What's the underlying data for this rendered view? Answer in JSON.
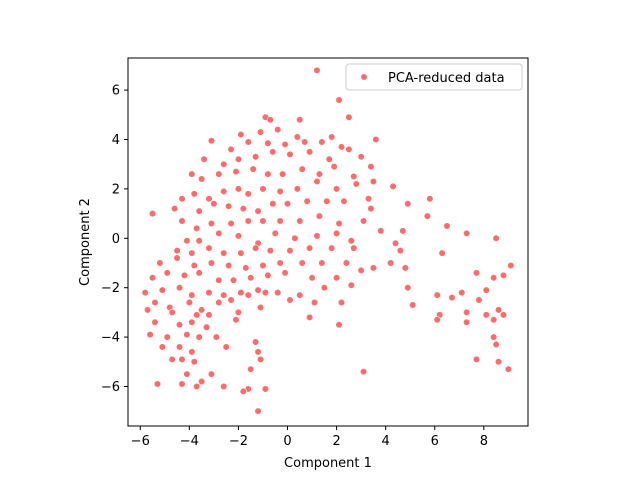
{
  "chart_data": {
    "type": "scatter",
    "title": "",
    "xlabel": "Component 1",
    "ylabel": "Component 2",
    "xlim": [
      -6.5,
      9.8
    ],
    "ylim": [
      -7.6,
      7.3
    ],
    "xticks": [
      -6,
      -4,
      -2,
      0,
      2,
      4,
      6,
      8
    ],
    "yticks": [
      -6,
      -4,
      -2,
      0,
      2,
      4,
      6
    ],
    "grid": false,
    "legend_position": "upper right",
    "series": [
      {
        "name": "PCA-reduced data",
        "color": "#ff5b5b",
        "points": [
          [
            1.2,
            6.8
          ],
          [
            2.1,
            5.6
          ],
          [
            2.5,
            4.9
          ],
          [
            -0.9,
            4.9
          ],
          [
            -0.7,
            4.8
          ],
          [
            0.5,
            4.8
          ],
          [
            -1.9,
            4.2
          ],
          [
            -1.1,
            4.3
          ],
          [
            -0.4,
            4.4
          ],
          [
            0.4,
            4.1
          ],
          [
            1.8,
            4.1
          ],
          [
            3.6,
            4.0
          ],
          [
            -3.1,
            3.95
          ],
          [
            -2.3,
            3.6
          ],
          [
            -1.6,
            3.9
          ],
          [
            -0.8,
            3.85
          ],
          [
            -0.1,
            3.8
          ],
          [
            0.7,
            3.9
          ],
          [
            1.4,
            3.9
          ],
          [
            2.2,
            3.7
          ],
          [
            3.0,
            3.3
          ],
          [
            -3.4,
            3.2
          ],
          [
            -2.6,
            3.0
          ],
          [
            -2.0,
            3.2
          ],
          [
            -1.3,
            3.3
          ],
          [
            -0.6,
            3.5
          ],
          [
            0.1,
            3.4
          ],
          [
            0.9,
            3.5
          ],
          [
            1.7,
            3.2
          ],
          [
            2.5,
            3.6
          ],
          [
            3.4,
            2.9
          ],
          [
            -3.9,
            2.6
          ],
          [
            -3.5,
            2.4
          ],
          [
            -2.8,
            2.6
          ],
          [
            -2.1,
            2.7
          ],
          [
            -1.4,
            2.8
          ],
          [
            -0.8,
            2.6
          ],
          [
            -0.2,
            2.6
          ],
          [
            0.6,
            2.8
          ],
          [
            1.3,
            2.6
          ],
          [
            1.9,
            2.9
          ],
          [
            2.7,
            2.5
          ],
          [
            3.5,
            2.3
          ],
          [
            -4.3,
            1.6
          ],
          [
            -3.8,
            1.8
          ],
          [
            -3.2,
            1.6
          ],
          [
            -2.6,
            1.9
          ],
          [
            -2.0,
            2.0
          ],
          [
            -1.6,
            1.8
          ],
          [
            -1.0,
            2.0
          ],
          [
            -0.3,
            1.9
          ],
          [
            0.4,
            2.0
          ],
          [
            1.2,
            2.3
          ],
          [
            2.0,
            2.0
          ],
          [
            2.8,
            2.2
          ],
          [
            3.3,
            1.6
          ],
          [
            4.3,
            2.1
          ],
          [
            -4.6,
            1.2
          ],
          [
            -3.6,
            1.1
          ],
          [
            -3.0,
            1.4
          ],
          [
            -2.4,
            1.3
          ],
          [
            -1.8,
            1.2
          ],
          [
            -1.2,
            1.1
          ],
          [
            -0.6,
            1.4
          ],
          [
            0.0,
            1.4
          ],
          [
            0.8,
            1.5
          ],
          [
            1.6,
            1.5
          ],
          [
            2.3,
            1.5
          ],
          [
            3.4,
            1.2
          ],
          [
            4.9,
            1.4
          ],
          [
            5.8,
            1.6
          ],
          [
            -5.5,
            1.0
          ],
          [
            -4.3,
            0.7
          ],
          [
            -3.7,
            0.4
          ],
          [
            -3.1,
            0.6
          ],
          [
            -2.3,
            0.6
          ],
          [
            -1.6,
            0.7
          ],
          [
            -1.0,
            0.7
          ],
          [
            -0.3,
            0.7
          ],
          [
            0.5,
            0.7
          ],
          [
            1.3,
            0.9
          ],
          [
            2.1,
            0.6
          ],
          [
            3.1,
            0.7
          ],
          [
            4.7,
            0.3
          ],
          [
            5.7,
            0.9
          ],
          [
            6.5,
            0.5
          ],
          [
            -4.1,
            -0.1
          ],
          [
            -3.6,
            -0.1
          ],
          [
            -2.8,
            0.2
          ],
          [
            -2.0,
            0.1
          ],
          [
            -1.2,
            -0.2
          ],
          [
            -0.5,
            0.2
          ],
          [
            0.3,
            0.0
          ],
          [
            1.2,
            0.1
          ],
          [
            2.0,
            0.2
          ],
          [
            2.6,
            -0.1
          ],
          [
            3.8,
            0.3
          ],
          [
            4.4,
            -0.2
          ],
          [
            7.3,
            0.2
          ],
          [
            8.5,
            0.0
          ],
          [
            -4.5,
            -0.5
          ],
          [
            -3.9,
            -0.6
          ],
          [
            -3.2,
            -0.4
          ],
          [
            -2.6,
            -0.6
          ],
          [
            -1.9,
            -0.6
          ],
          [
            -1.3,
            -0.4
          ],
          [
            -0.7,
            -0.5
          ],
          [
            0.1,
            -0.5
          ],
          [
            0.9,
            -0.4
          ],
          [
            1.8,
            -0.4
          ],
          [
            2.7,
            -0.4
          ],
          [
            4.6,
            -0.5
          ],
          [
            6.3,
            -0.6
          ],
          [
            -5.2,
            -1.0
          ],
          [
            -4.5,
            -0.8
          ],
          [
            -3.8,
            -1.1
          ],
          [
            -3.1,
            -1.0
          ],
          [
            -2.4,
            -1.1
          ],
          [
            -1.7,
            -1.2
          ],
          [
            -1.0,
            -1.1
          ],
          [
            -0.3,
            -1.0
          ],
          [
            0.6,
            -1.0
          ],
          [
            1.4,
            -1.0
          ],
          [
            2.4,
            -1.0
          ],
          [
            3.5,
            -1.2
          ],
          [
            4.2,
            -1.0
          ],
          [
            -5.5,
            -1.6
          ],
          [
            -4.9,
            -1.4
          ],
          [
            -4.2,
            -1.5
          ],
          [
            -3.6,
            -1.4
          ],
          [
            -2.8,
            -1.7
          ],
          [
            -2.2,
            -1.7
          ],
          [
            -1.5,
            -1.6
          ],
          [
            -0.8,
            -1.5
          ],
          [
            -0.1,
            -1.4
          ],
          [
            1.0,
            -1.6
          ],
          [
            2.0,
            -1.6
          ],
          [
            3.0,
            -1.3
          ],
          [
            4.8,
            -1.2
          ],
          [
            7.7,
            -1.4
          ],
          [
            8.4,
            -1.6
          ],
          [
            9.1,
            -1.1
          ],
          [
            -5.8,
            -2.2
          ],
          [
            -5.1,
            -2.1
          ],
          [
            -4.4,
            -2.0
          ],
          [
            -3.9,
            -2.3
          ],
          [
            -3.2,
            -2.2
          ],
          [
            -2.6,
            -2.3
          ],
          [
            -1.9,
            -2.2
          ],
          [
            -1.2,
            -2.1
          ],
          [
            -0.4,
            -2.2
          ],
          [
            0.5,
            -2.3
          ],
          [
            1.5,
            -2.0
          ],
          [
            2.6,
            -1.9
          ],
          [
            4.9,
            -2.0
          ],
          [
            6.1,
            -2.3
          ],
          [
            7.1,
            -2.2
          ],
          [
            8.1,
            -2.1
          ],
          [
            8.8,
            -1.5
          ],
          [
            -5.4,
            -2.6
          ],
          [
            -4.8,
            -2.8
          ],
          [
            -4.0,
            -2.6
          ],
          [
            -3.5,
            -2.9
          ],
          [
            -2.8,
            -2.6
          ],
          [
            -2.3,
            -2.5
          ],
          [
            -1.6,
            -2.3
          ],
          [
            -0.9,
            -2.2
          ],
          [
            0.1,
            -2.5
          ],
          [
            1.1,
            -2.6
          ],
          [
            2.2,
            -2.6
          ],
          [
            5.1,
            -2.7
          ],
          [
            6.7,
            -2.4
          ],
          [
            7.8,
            -2.5
          ],
          [
            8.6,
            -2.9
          ],
          [
            -5.7,
            -2.9
          ],
          [
            -4.7,
            -3.0
          ],
          [
            -3.7,
            -3.1
          ],
          [
            -3.2,
            -3.1
          ],
          [
            -2.0,
            -3.0
          ],
          [
            -1.1,
            -2.8
          ],
          [
            0.9,
            -3.2
          ],
          [
            6.2,
            -3.1
          ],
          [
            7.3,
            -3.0
          ],
          [
            8.1,
            -3.1
          ],
          [
            8.8,
            -3.1
          ],
          [
            -5.4,
            -3.4
          ],
          [
            -4.4,
            -3.5
          ],
          [
            -3.9,
            -3.4
          ],
          [
            -3.3,
            -3.6
          ],
          [
            -2.1,
            -3.3
          ],
          [
            2.1,
            -3.5
          ],
          [
            6.1,
            -3.3
          ],
          [
            7.3,
            -3.4
          ],
          [
            8.4,
            -3.3
          ],
          [
            -5.6,
            -3.9
          ],
          [
            -4.9,
            -4.0
          ],
          [
            -4.1,
            -3.9
          ],
          [
            -3.6,
            -4.0
          ],
          [
            -2.9,
            -4.0
          ],
          [
            -1.3,
            -4.2
          ],
          [
            8.4,
            -4.0
          ],
          [
            -5.1,
            -4.4
          ],
          [
            -4.4,
            -4.4
          ],
          [
            -3.9,
            -4.6
          ],
          [
            -2.5,
            -4.4
          ],
          [
            -1.2,
            -4.6
          ],
          [
            8.5,
            -4.3
          ],
          [
            -4.7,
            -4.9
          ],
          [
            -4.3,
            -4.9
          ],
          [
            -3.8,
            -5.0
          ],
          [
            -1.1,
            -4.9
          ],
          [
            7.7,
            -4.9
          ],
          [
            8.6,
            -5.0
          ],
          [
            -4.1,
            -5.5
          ],
          [
            -3.1,
            -5.5
          ],
          [
            -1.5,
            -5.3
          ],
          [
            3.1,
            -5.4
          ],
          [
            9.0,
            -5.3
          ],
          [
            -5.3,
            -5.9
          ],
          [
            -4.3,
            -5.9
          ],
          [
            -3.7,
            -6.0
          ],
          [
            -3.5,
            -5.8
          ],
          [
            -2.6,
            -6.0
          ],
          [
            -1.6,
            -6.1
          ],
          [
            -1.8,
            -6.2
          ],
          [
            -1.2,
            -7.0
          ],
          [
            -0.9,
            -6.1
          ]
        ]
      }
    ]
  }
}
